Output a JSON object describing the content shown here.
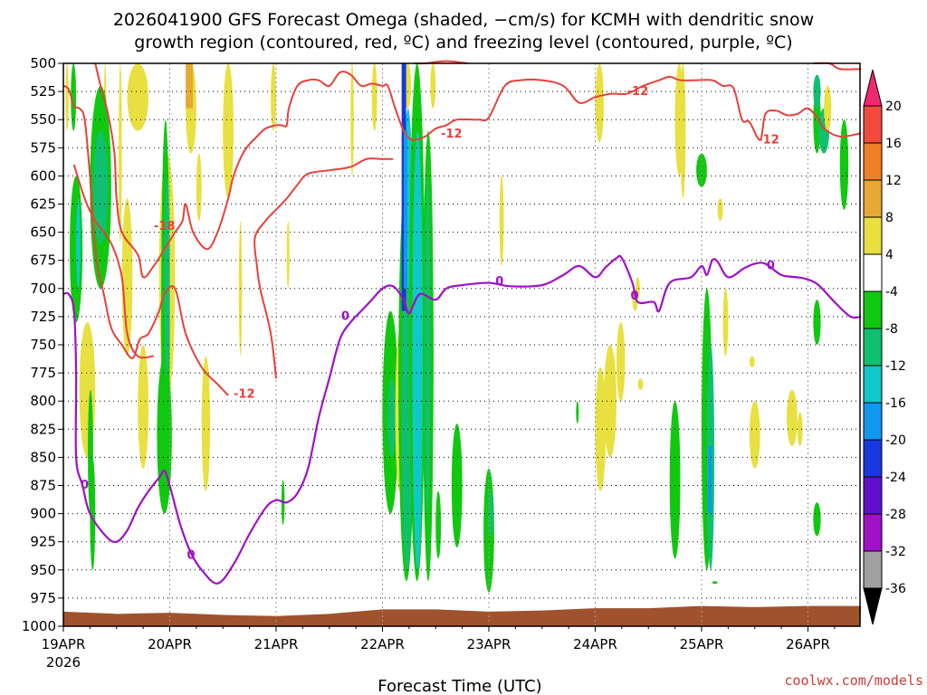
{
  "title": {
    "line1": "2026041900 GFS Forecast Omega (shaded, −cm/s) for KCMH with dendritic snow",
    "line2": "growth region (contoured, red, ºC) and freezing level (contoured, purple, ºC)"
  },
  "footer": {
    "xlabel": "Forecast Time (UTC)",
    "credit": "coolwx.com/models"
  },
  "chart_data": {
    "type": "heatmap",
    "title": "2026041900 GFS Forecast Omega (shaded, −cm/s) for KCMH with dendritic snow growth region (contoured, red, ºC) and freezing level (contoured, purple, ºC)",
    "xlabel": "Forecast Time (UTC)",
    "ylabel": "",
    "y_ticks": [
      500,
      525,
      550,
      575,
      600,
      625,
      650,
      675,
      700,
      725,
      750,
      775,
      800,
      825,
      850,
      875,
      900,
      925,
      950,
      975,
      1000
    ],
    "ylim": [
      1000,
      500
    ],
    "x_ticks": [
      {
        "day": 0,
        "label": "19APR",
        "sub": "2026"
      },
      {
        "day": 1,
        "label": "20APR"
      },
      {
        "day": 2,
        "label": "21APR"
      },
      {
        "day": 3,
        "label": "22APR"
      },
      {
        "day": 4,
        "label": "23APR"
      },
      {
        "day": 5,
        "label": "24APR"
      },
      {
        "day": 6,
        "label": "25APR"
      },
      {
        "day": 7,
        "label": "26APR"
      }
    ],
    "xlim_days": [
      0,
      7.5
    ],
    "grid": true,
    "colorbar": {
      "labels": [
        20,
        16,
        12,
        8,
        4,
        -4,
        -8,
        -12,
        -16,
        -20,
        -24,
        -28,
        -32,
        -36
      ],
      "colors": [
        "#f02870",
        "#f04b3c",
        "#f08026",
        "#e8a834",
        "#e8e040",
        "#ffffff",
        "#10c810",
        "#10c070",
        "#10c8c8",
        "#1098f0",
        "#1838e0",
        "#6010c8",
        "#a010c8",
        "#a0a0a0",
        "#000000"
      ]
    },
    "contour_labels": {
      "dgz": [
        "-12",
        "-12",
        "-12",
        "-12",
        "-18"
      ],
      "freezing": [
        "0",
        "0",
        "0",
        "0",
        "0",
        "0",
        "0"
      ]
    },
    "series": [
      {
        "name": "freezing level",
        "unit": "0",
        "color": "#a010c8",
        "points": [
          [
            0,
            705
          ],
          [
            0.05,
            705
          ],
          [
            0.1,
            720
          ],
          [
            0.12,
            775
          ],
          [
            0.12,
            850
          ],
          [
            0.18,
            875
          ],
          [
            0.25,
            900
          ],
          [
            0.4,
            920
          ],
          [
            0.5,
            925
          ],
          [
            0.6,
            915
          ],
          [
            0.7,
            895
          ],
          [
            0.8,
            880
          ],
          [
            0.9,
            868
          ],
          [
            0.95,
            862
          ],
          [
            1.0,
            875
          ],
          [
            1.1,
            910
          ],
          [
            1.2,
            935
          ],
          [
            1.3,
            950
          ],
          [
            1.45,
            962
          ],
          [
            1.6,
            945
          ],
          [
            1.75,
            918
          ],
          [
            1.9,
            895
          ],
          [
            2.0,
            888
          ],
          [
            2.1,
            890
          ],
          [
            2.2,
            882
          ],
          [
            2.3,
            860
          ],
          [
            2.4,
            815
          ],
          [
            2.5,
            780
          ],
          [
            2.6,
            745
          ],
          [
            2.7,
            730
          ],
          [
            2.8,
            720
          ],
          [
            2.9,
            710
          ],
          [
            3.0,
            700
          ],
          [
            3.1,
            698
          ],
          [
            3.2,
            710
          ],
          [
            3.25,
            722
          ],
          [
            3.35,
            705
          ],
          [
            3.5,
            710
          ],
          [
            3.6,
            700
          ],
          [
            3.75,
            697
          ],
          [
            4.0,
            695
          ],
          [
            4.2,
            698
          ],
          [
            4.5,
            697
          ],
          [
            4.7,
            688
          ],
          [
            4.85,
            680
          ],
          [
            5.0,
            690
          ],
          [
            5.1,
            681
          ],
          [
            5.2,
            673
          ],
          [
            5.25,
            673
          ],
          [
            5.35,
            695
          ],
          [
            5.4,
            712
          ],
          [
            5.55,
            712
          ],
          [
            5.6,
            720
          ],
          [
            5.7,
            695
          ],
          [
            5.9,
            690
          ],
          [
            6.0,
            680
          ],
          [
            6.05,
            688
          ],
          [
            6.1,
            675
          ],
          [
            6.15,
            676
          ],
          [
            6.25,
            690
          ],
          [
            6.4,
            682
          ],
          [
            6.5,
            678
          ],
          [
            6.6,
            678
          ],
          [
            6.75,
            688
          ],
          [
            6.9,
            690
          ],
          [
            7.0,
            692
          ],
          [
            7.1,
            697
          ],
          [
            7.25,
            712
          ],
          [
            7.4,
            725
          ],
          [
            7.5,
            725
          ]
        ]
      },
      {
        "name": "dendritic snow growth region",
        "unit": "-12",
        "color": "#e8403a",
        "lines": [
          [
            [
              0,
              520
            ],
            [
              0.05,
              523
            ],
            [
              0.1,
              538
            ],
            [
              0.15,
              540
            ],
            [
              0.2,
              550
            ],
            [
              0.25,
              600
            ],
            [
              0.28,
              645
            ],
            [
              0.32,
              680
            ],
            [
              0.38,
              705
            ],
            [
              0.45,
              735
            ],
            [
              0.55,
              750
            ],
            [
              0.65,
              762
            ],
            [
              0.72,
              745
            ],
            [
              0.8,
              740
            ],
            [
              0.9,
              720
            ],
            [
              0.95,
              705
            ],
            [
              1.05,
              700
            ],
            [
              1.15,
              740
            ],
            [
              1.3,
              770
            ],
            [
              1.45,
              785
            ],
            [
              1.55,
              795
            ]
          ],
          [
            [
              0.3,
              500
            ],
            [
              0.35,
              520
            ],
            [
              0.42,
              545
            ],
            [
              0.48,
              580
            ],
            [
              0.5,
              620
            ],
            [
              0.55,
              650
            ],
            [
              0.7,
              670
            ],
            [
              0.75,
              690
            ],
            [
              0.85,
              680
            ],
            [
              0.95,
              665
            ],
            [
              1.05,
              650
            ],
            [
              1.12,
              640
            ],
            [
              1.15,
              625
            ],
            [
              1.22,
              650
            ],
            [
              1.35,
              665
            ],
            [
              1.45,
              650
            ],
            [
              1.55,
              620
            ],
            [
              1.6,
              600
            ],
            [
              1.7,
              578
            ],
            [
              1.82,
              565
            ],
            [
              1.9,
              558
            ],
            [
              2.0,
              555
            ],
            [
              2.05,
              555
            ],
            [
              2.1,
              555
            ],
            [
              2.12,
              540
            ],
            [
              2.2,
              520
            ],
            [
              2.3,
              515
            ],
            [
              2.4,
              515
            ],
            [
              2.5,
              520
            ],
            [
              2.6,
              508
            ],
            [
              2.7,
              510
            ],
            [
              2.8,
              520
            ],
            [
              2.9,
              518
            ],
            [
              3.0,
              520
            ],
            [
              3.05,
              520
            ],
            [
              3.12,
              540
            ],
            [
              3.2,
              560
            ],
            [
              3.28,
              568
            ],
            [
              3.4,
              565
            ],
            [
              3.5,
              558
            ],
            [
              3.6,
              555
            ],
            [
              3.7,
              550
            ],
            [
              3.9,
              550
            ],
            [
              4.0,
              548
            ],
            [
              4.15,
              520
            ],
            [
              4.3,
              515
            ],
            [
              4.5,
              515
            ],
            [
              4.7,
              520
            ],
            [
              4.85,
              535
            ],
            [
              5.0,
              530
            ],
            [
              5.15,
              527
            ],
            [
              5.3,
              527
            ],
            [
              5.45,
              520
            ],
            [
              5.6,
              515
            ],
            [
              5.7,
              512
            ],
            [
              5.8,
              515
            ],
            [
              5.95,
              515
            ],
            [
              6.1,
              515
            ],
            [
              6.2,
              520
            ],
            [
              6.3,
              522
            ],
            [
              6.38,
              550
            ],
            [
              6.45,
              552
            ],
            [
              6.55,
              568
            ],
            [
              6.6,
              545
            ],
            [
              6.7,
              542
            ],
            [
              6.8,
              546
            ],
            [
              6.9,
              545
            ],
            [
              7.0,
              540
            ],
            [
              7.1,
              550
            ],
            [
              7.15,
              558
            ],
            [
              7.3,
              565
            ],
            [
              7.5,
              562
            ]
          ],
          [
            [
              0.1,
              590
            ],
            [
              0.2,
              620
            ],
            [
              0.3,
              640
            ],
            [
              0.45,
              660
            ],
            [
              0.55,
              690
            ],
            [
              0.6,
              740
            ],
            [
              0.7,
              760
            ],
            [
              0.85,
              760
            ]
          ],
          [
            [
              2.0,
              780
            ],
            [
              1.95,
              740
            ],
            [
              1.85,
              700
            ],
            [
              1.82,
              680
            ],
            [
              1.8,
              655
            ],
            [
              1.9,
              640
            ],
            [
              2.0,
              630
            ],
            [
              2.1,
              620
            ],
            [
              2.2,
              608
            ],
            [
              2.3,
              598
            ],
            [
              2.5,
              595
            ],
            [
              2.7,
              592
            ],
            [
              2.85,
              585
            ],
            [
              3.0,
              585
            ],
            [
              3.1,
              585
            ]
          ],
          [
            [
              3.3,
              500
            ],
            [
              3.4,
              500
            ],
            [
              3.6,
              498
            ],
            [
              3.8,
              500
            ]
          ],
          [
            [
              7.05,
              500
            ],
            [
              7.2,
              500
            ],
            [
              7.3,
              505
            ],
            [
              7.5,
              505
            ]
          ]
        ]
      }
    ]
  }
}
